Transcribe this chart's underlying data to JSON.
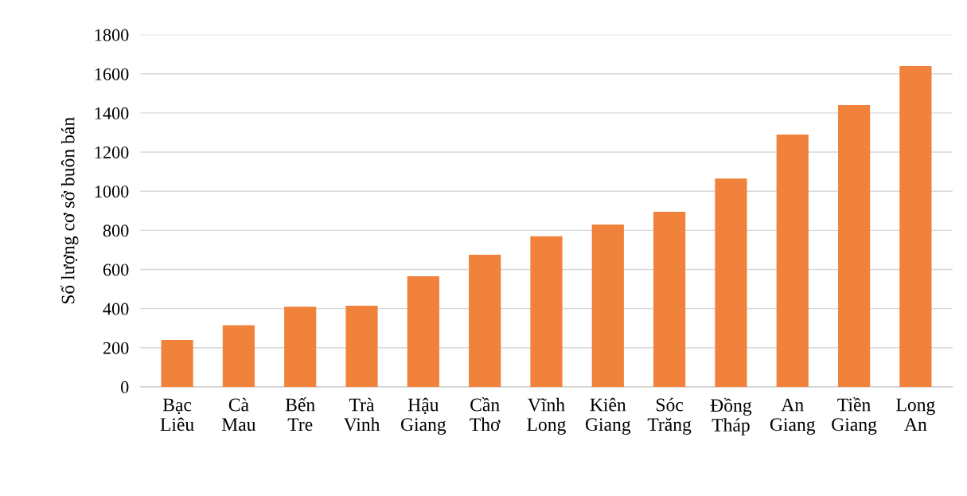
{
  "chart_data": {
    "type": "bar",
    "ylabel": "Số lượng cơ sở buôn bán",
    "categories": [
      "Bạc\nLiêu",
      "Cà\nMau",
      "Bến\nTre",
      "Trà\nVinh",
      "Hậu\nGiang",
      "Cần\nThơ",
      "Vĩnh\nLong",
      "Kiên\nGiang",
      "Sóc\nTrăng",
      "Đồng\nTháp",
      "An\nGiang",
      "Tiền\nGiang",
      "Long\nAn"
    ],
    "values": [
      240,
      315,
      410,
      415,
      565,
      675,
      770,
      830,
      895,
      1065,
      1290,
      1440,
      1640
    ],
    "color": "#f0823c",
    "ylim": [
      0,
      1800
    ],
    "yticks": [
      0,
      200,
      400,
      600,
      800,
      1000,
      1200,
      1400,
      1600,
      1800
    ],
    "grid": "y",
    "legend": false
  }
}
